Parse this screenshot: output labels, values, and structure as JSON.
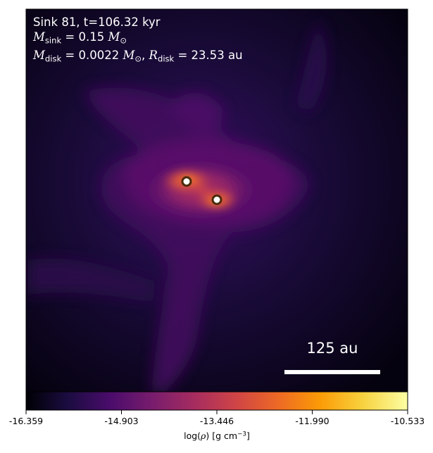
{
  "panel": {
    "line1": "Sink 81, t=106.32 kyr",
    "m_sink_symbol": "M",
    "m_sink_sub": "sink",
    "m_sink_value": " = 0.15 ",
    "m_disk_symbol": "M",
    "m_disk_sub": "disk",
    "m_disk_value": " = 0.0022 ",
    "r_disk_symbol": "R",
    "r_disk_sub": "disk",
    "r_disk_value": " = 23.53 au",
    "solar_symbol": "M",
    "solar_sub": "⊙",
    "scale_bar_label": "125 au"
  },
  "colorbar": {
    "ticks": [
      "-16.359",
      "-14.903",
      "-13.446",
      "-11.990",
      "-10.533"
    ],
    "label_prefix": "log(",
    "label_rho": "ρ",
    "label_units": ") [g cm",
    "label_exp": "−3",
    "label_close": "]",
    "colormap": "inferno",
    "colors": [
      "#000004",
      "#1b0c41",
      "#4a0c6b",
      "#781c6d",
      "#a52c60",
      "#cf4446",
      "#ed6925",
      "#fb9b06",
      "#f7d13d",
      "#fcffa4"
    ]
  },
  "sinks": {
    "count": 2,
    "marker_fill": "#ffffff",
    "marker_edge": "#5a3a10"
  }
}
